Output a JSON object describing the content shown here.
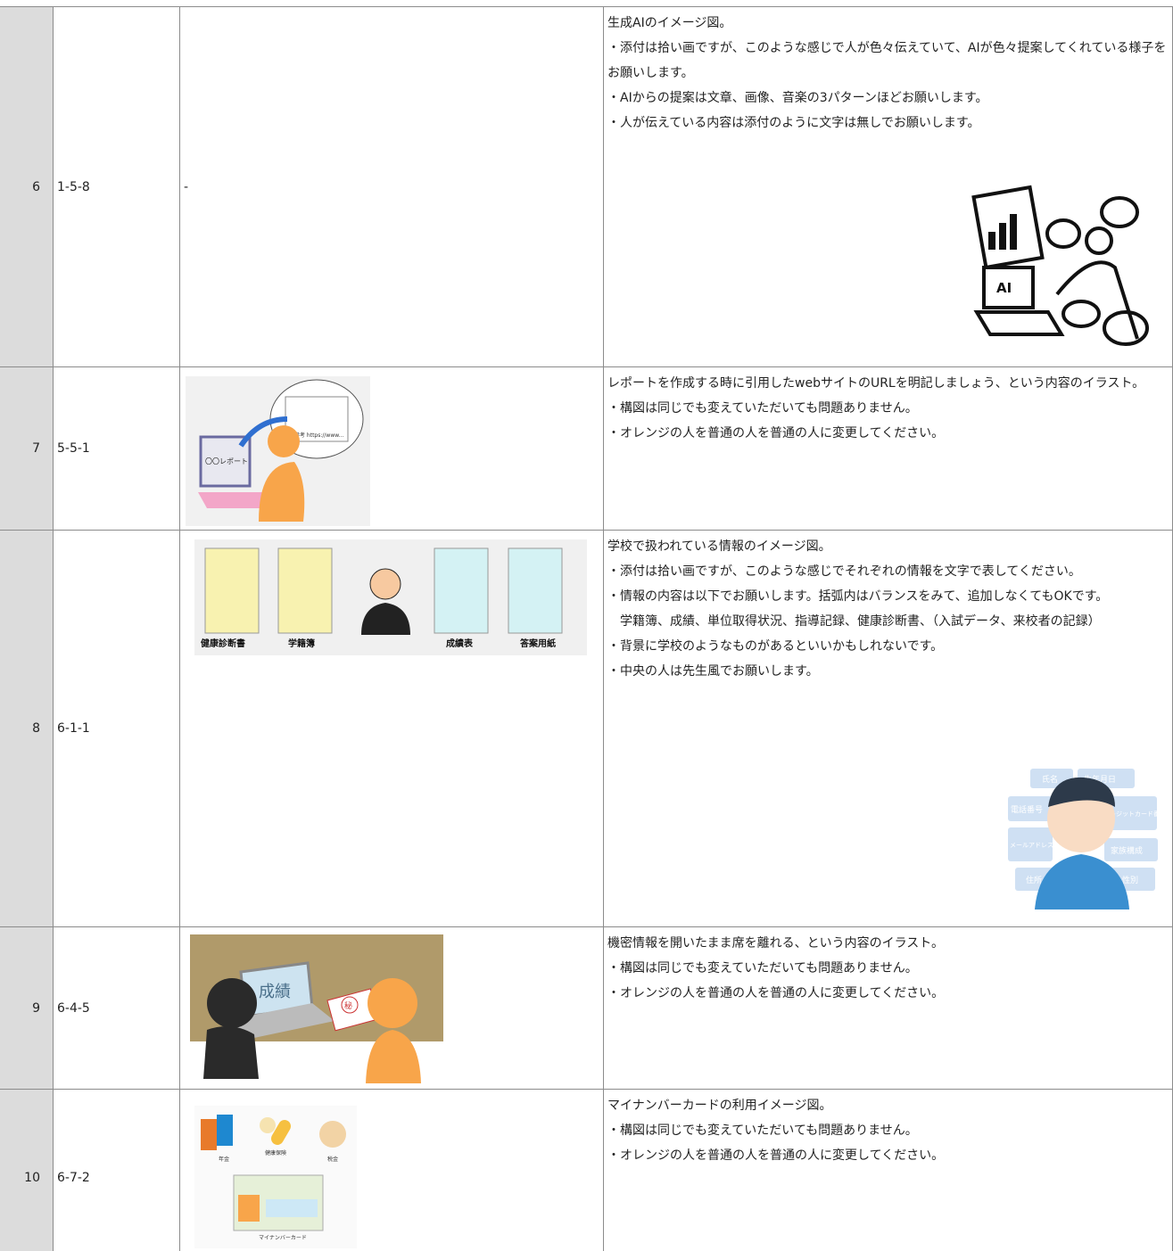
{
  "rows": [
    {
      "number": "6",
      "code": "1-5-8",
      "note": "-",
      "description": [
        "生成AIのイメージ図。",
        "・添付は拾い画ですが、このような感じで人が色々伝えていて、AIが色々提案してくれている様子をお願いします。",
        "・AIからの提案は文章、画像、音楽の3パターンほどお願いします。",
        "・人が伝えている内容は添付のように文字は無しでお願いします。"
      ],
      "image_labels": [
        "AI"
      ]
    },
    {
      "number": "7",
      "code": "5-5-1",
      "description": [
        "レポートを作成する時に引用したwebサイトのURLを明記しましょう、という内容のイラスト。",
        "・構図は同じでも変えていただいても問題ありません。",
        "・オレンジの人を普通の人を普通の人に変更してください。"
      ],
      "image_labels": [
        "〇〇レポート",
        "参考 https://www..."
      ]
    },
    {
      "number": "8",
      "code": "6-1-1",
      "description": [
        "学校で扱われている情報のイメージ図。",
        "・添付は拾い画ですが、このような感じでそれぞれの情報を文字で表してください。",
        "・情報の内容は以下でお願いします。括弧内はバランスをみて、追加しなくてもOKです。",
        "　学籍簿、成績、単位取得状況、指導記録、健康診断書、（入試データ、来校者の記録）",
        "・背景に学校のようなものがあるといいかもしれないです。",
        "・中央の人は先生風でお願いします。"
      ],
      "image_labels": [
        "健康診断書",
        "学籍簿",
        "成績表",
        "答案用紙"
      ],
      "image2_labels": [
        "氏名",
        "生年月日",
        "電話番号",
        "クレジットカード番号",
        "メールアドレス",
        "家族構成",
        "住所",
        "性別"
      ]
    },
    {
      "number": "9",
      "code": "6-4-5",
      "description": [
        "機密情報を開いたまま席を離れる、という内容のイラスト。",
        "・構図は同じでも変えていただいても問題ありません。",
        "・オレンジの人を普通の人を普通の人に変更してください。"
      ],
      "image_labels": [
        "成績",
        "秘"
      ]
    },
    {
      "number": "10",
      "code": "6-7-2",
      "description": [
        "マイナンバーカードの利用イメージ図。",
        "・構図は同じでも変えていただいても問題ありません。",
        "・オレンジの人を普通の人を普通の人に変更してください。"
      ],
      "image_labels": [
        "年金",
        "健康保険",
        "税金",
        "マイナンバーカード"
      ]
    }
  ]
}
